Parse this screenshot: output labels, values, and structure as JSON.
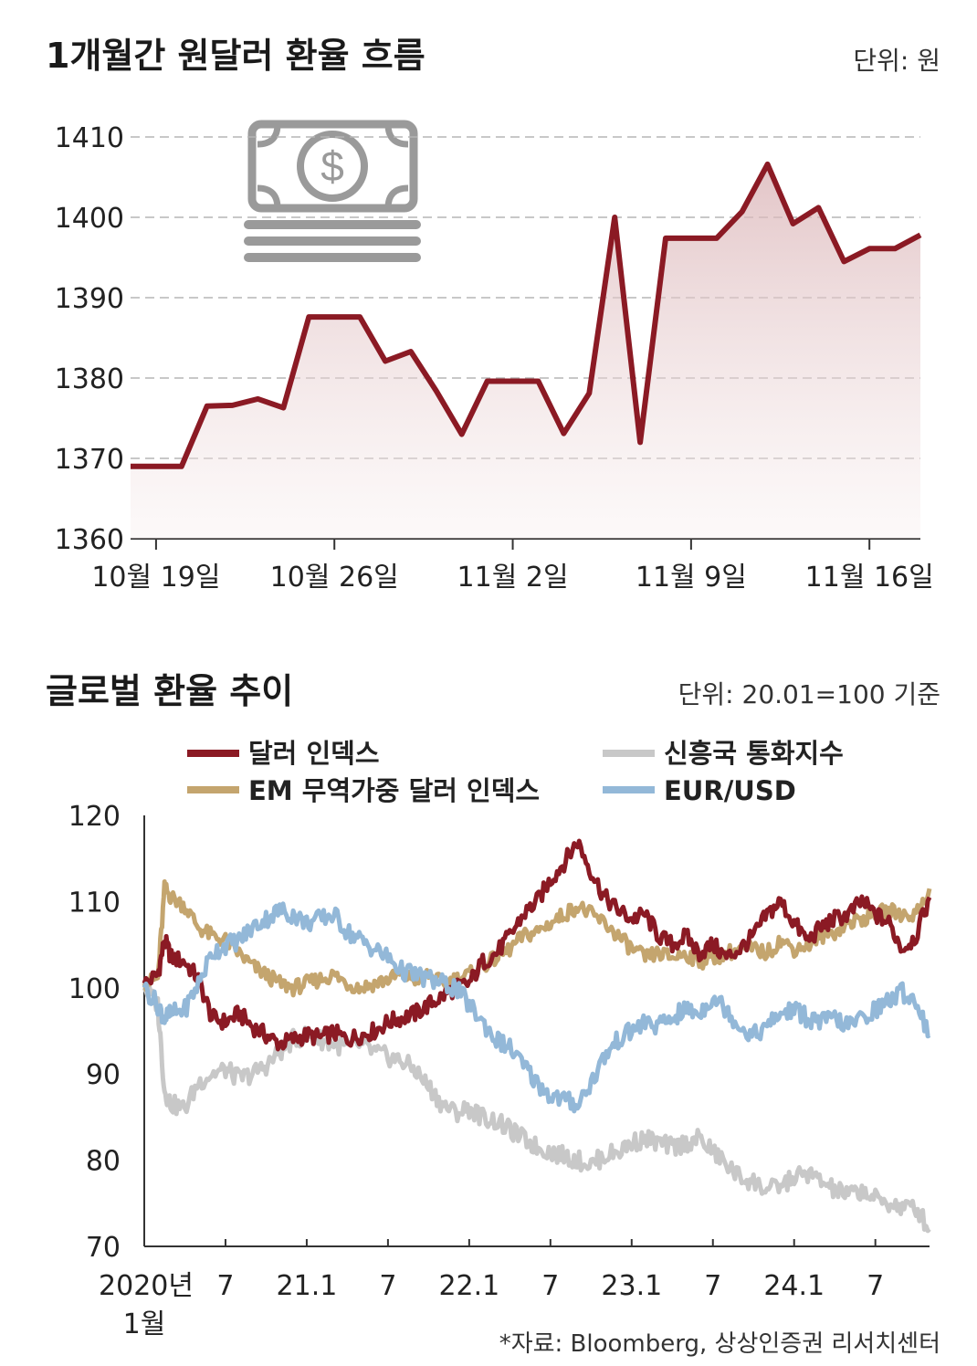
{
  "colors": {
    "dollar_index": "#8b1a24",
    "em_index": "#c4a56e",
    "em_currency": "#c8c8c8",
    "eur_usd": "#93b8d8",
    "krw_line": "#8b1a24",
    "icon": "#9a9a9a"
  },
  "icon_name": "money-icon",
  "chart_data": [
    {
      "type": "area",
      "title": "1개월간 원달러 환율 흐름",
      "unit_label": "단위: 원",
      "ylim": [
        1360,
        1410
      ],
      "yticks": [
        1410,
        1400,
        1390,
        1380,
        1370,
        1360
      ],
      "grid": true,
      "x_ticks": [
        {
          "label": "10월 19일",
          "index": 1
        },
        {
          "label": "10월 26일",
          "index": 8
        },
        {
          "label": "11월 2일",
          "index": 15
        },
        {
          "label": "11월 9일",
          "index": 22
        },
        {
          "label": "11월 16일",
          "index": 29
        }
      ],
      "x_range": [
        0,
        31
      ],
      "values": [
        1369.0,
        1369.0,
        1369.0,
        1376.5,
        1376.6,
        1377.4,
        1376.3,
        1387.6,
        1387.6,
        1387.6,
        1382.1,
        1383.3,
        1378.4,
        1373.0,
        1379.6,
        1379.6,
        1379.6,
        1373.1,
        1378.1,
        1400.0,
        1372.0,
        1397.4,
        1397.4,
        1397.4,
        1400.7,
        1406.6,
        1399.2,
        1401.2,
        1394.5,
        1396.1,
        1396.1,
        1397.8
      ]
    },
    {
      "type": "line",
      "title": "글로벌 환율 추이",
      "unit_label": "단위: 20.01=100 기준",
      "ylim": [
        70,
        120
      ],
      "yticks": [
        120,
        110,
        100,
        90,
        80,
        70
      ],
      "x_range": [
        0,
        58
      ],
      "x_ticks": [
        {
          "label": "2020년",
          "sub": "1월",
          "month": 0
        },
        {
          "label": "7",
          "month": 6
        },
        {
          "label": "21.1",
          "month": 12
        },
        {
          "label": "7",
          "month": 18
        },
        {
          "label": "22.1",
          "month": 24
        },
        {
          "label": "7",
          "month": 30
        },
        {
          "label": "23.1",
          "month": 36
        },
        {
          "label": "7",
          "month": 42
        },
        {
          "label": "24.1",
          "month": 48
        },
        {
          "label": "7",
          "month": 54
        }
      ],
      "source": "*자료: Bloomberg, 상상인증권 리서치센터",
      "series": [
        {
          "name": "달러 인덱스",
          "key": "dollar_index",
          "x": [
            0,
            1,
            1.5,
            2,
            3,
            4,
            5,
            6,
            7,
            8,
            9,
            10,
            11,
            12,
            13,
            14,
            15,
            16,
            17,
            18,
            19,
            20,
            21,
            22,
            23,
            24,
            25,
            26,
            27,
            28,
            29,
            30,
            31,
            32,
            33,
            34,
            35,
            36,
            37,
            38,
            39,
            40,
            41,
            42,
            43,
            44,
            45,
            46,
            47,
            48,
            49,
            50,
            51,
            52,
            53,
            54,
            55,
            56,
            57,
            58
          ],
          "values": [
            100.5,
            101.5,
            105.5,
            103.5,
            103.0,
            101.0,
            96.5,
            96.0,
            97.0,
            95.5,
            94.5,
            93.5,
            94.0,
            94.5,
            94.2,
            94.8,
            94.0,
            94.5,
            95.0,
            96.0,
            96.5,
            97.0,
            98.0,
            99.0,
            100.0,
            100.5,
            103.0,
            104.0,
            106.0,
            108.5,
            110.0,
            112.5,
            114.5,
            117.0,
            113.5,
            110.5,
            109.0,
            108.0,
            108.5,
            106.0,
            105.0,
            106.0,
            104.0,
            105.0,
            103.5,
            104.5,
            106.0,
            108.5,
            110.0,
            107.5,
            105.5,
            107.0,
            108.0,
            108.5,
            110.0,
            108.5,
            107.5,
            104.5,
            106.0,
            110.5
          ]
        },
        {
          "name": "EM 무역가중 달러 인덱스",
          "key": "em_index",
          "x": [
            0,
            1,
            1.5,
            2,
            3,
            4,
            5,
            6,
            7,
            8,
            9,
            10,
            11,
            12,
            13,
            14,
            15,
            16,
            17,
            18,
            19,
            20,
            21,
            22,
            23,
            24,
            25,
            26,
            27,
            28,
            29,
            30,
            31,
            32,
            33,
            34,
            35,
            36,
            37,
            38,
            39,
            40,
            41,
            42,
            43,
            44,
            45,
            46,
            47,
            48,
            49,
            50,
            51,
            52,
            53,
            54,
            55,
            56,
            57,
            58
          ],
          "values": [
            100.5,
            101.0,
            111.5,
            110.5,
            109.5,
            107.0,
            106.0,
            105.5,
            104.0,
            102.5,
            101.5,
            100.5,
            100.0,
            100.5,
            101.0,
            101.5,
            100.5,
            100.0,
            100.5,
            101.0,
            101.5,
            101.0,
            101.5,
            100.5,
            101.0,
            101.5,
            102.5,
            103.5,
            104.5,
            106.0,
            106.5,
            107.5,
            108.5,
            109.5,
            108.5,
            107.5,
            106.0,
            104.5,
            103.5,
            104.0,
            103.5,
            104.0,
            103.0,
            103.5,
            104.0,
            104.5,
            104.5,
            104.0,
            105.5,
            104.5,
            105.0,
            106.0,
            106.5,
            107.5,
            108.0,
            108.5,
            109.0,
            108.5,
            108.5,
            111.5
          ]
        },
        {
          "name": "신흥국 통화지수",
          "key": "em_currency",
          "x": [
            0,
            1,
            1.5,
            2,
            3,
            4,
            5,
            6,
            7,
            8,
            9,
            10,
            11,
            12,
            13,
            14,
            15,
            16,
            17,
            18,
            19,
            20,
            21,
            22,
            23,
            24,
            25,
            26,
            27,
            28,
            29,
            30,
            31,
            32,
            33,
            34,
            35,
            36,
            37,
            38,
            39,
            40,
            41,
            42,
            43,
            44,
            45,
            46,
            47,
            48,
            49,
            50,
            51,
            52,
            53,
            54,
            55,
            56,
            57,
            58
          ],
          "values": [
            100.0,
            98.0,
            88.0,
            86.5,
            86.0,
            89.0,
            90.0,
            90.5,
            89.5,
            90.0,
            91.0,
            92.5,
            94.0,
            94.5,
            94.0,
            93.5,
            93.0,
            93.5,
            92.5,
            92.0,
            91.5,
            90.5,
            88.5,
            86.5,
            85.5,
            86.0,
            85.0,
            84.5,
            83.5,
            82.5,
            81.5,
            81.0,
            80.5,
            80.0,
            79.5,
            80.5,
            81.0,
            82.0,
            82.5,
            82.0,
            81.5,
            82.0,
            82.5,
            81.0,
            79.5,
            78.0,
            77.5,
            76.5,
            77.0,
            78.0,
            78.5,
            77.5,
            76.5,
            76.0,
            76.5,
            75.5,
            75.0,
            74.5,
            74.5,
            72.0
          ]
        },
        {
          "name": "EUR/USD",
          "key": "eur_usd",
          "x": [
            0,
            1,
            1.5,
            2,
            3,
            4,
            5,
            6,
            7,
            8,
            9,
            10,
            11,
            12,
            13,
            14,
            15,
            16,
            17,
            18,
            19,
            20,
            21,
            22,
            23,
            24,
            25,
            26,
            27,
            28,
            29,
            30,
            31,
            32,
            33,
            34,
            35,
            36,
            37,
            38,
            39,
            40,
            41,
            42,
            43,
            44,
            45,
            46,
            47,
            48,
            49,
            50,
            51,
            52,
            53,
            54,
            55,
            56,
            57,
            58
          ],
          "values": [
            100.0,
            98.0,
            96.5,
            97.0,
            97.5,
            100.5,
            104.0,
            105.0,
            105.5,
            107.0,
            108.0,
            109.0,
            108.5,
            107.5,
            108.0,
            108.5,
            106.5,
            105.5,
            104.5,
            103.5,
            102.0,
            101.5,
            101.0,
            100.5,
            100.0,
            98.0,
            96.0,
            94.0,
            93.0,
            91.0,
            89.0,
            87.5,
            87.0,
            86.5,
            89.0,
            92.0,
            94.0,
            95.0,
            96.0,
            95.5,
            96.5,
            97.5,
            97.0,
            99.0,
            97.5,
            95.5,
            94.5,
            95.5,
            97.0,
            97.5,
            96.5,
            96.0,
            96.5,
            95.5,
            96.5,
            97.5,
            98.5,
            99.5,
            98.5,
            94.5
          ]
        }
      ]
    }
  ]
}
